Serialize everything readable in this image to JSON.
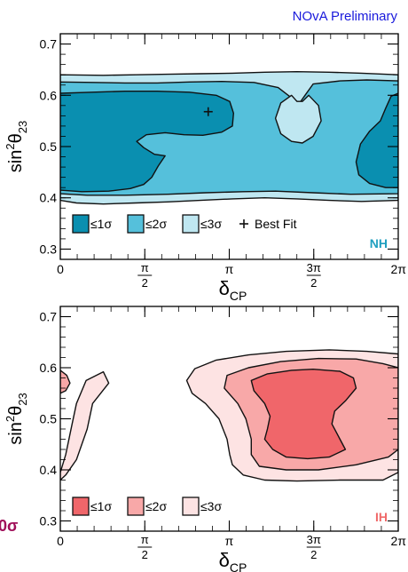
{
  "header": {
    "text": "NOvA Preliminary",
    "color": "#1a1adc"
  },
  "side_label": {
    "text": "0σ",
    "color": "#a0105a"
  },
  "chart_data": [
    {
      "type": "contour",
      "hierarchy_label": "NH",
      "hierarchy_color": "#1f9fbf",
      "x_axis": {
        "label_main": "δ",
        "label_sub": "CP",
        "range": [
          0,
          6.2832
        ],
        "ticks": [
          {
            "value": 0,
            "kind": "plain",
            "text": "0"
          },
          {
            "value": 1.5708,
            "kind": "frac",
            "num": "π",
            "den": "2"
          },
          {
            "value": 3.1416,
            "kind": "plain",
            "text": "π"
          },
          {
            "value": 4.7124,
            "kind": "frac",
            "num": "3π",
            "den": "2"
          },
          {
            "value": 6.2832,
            "kind": "plain",
            "text": "2π"
          }
        ]
      },
      "y_axis": {
        "label_main": "sin",
        "label_sup": "2",
        "label_theta": "θ",
        "label_sub": "23",
        "range": [
          0.28,
          0.72
        ],
        "ticks": [
          {
            "value": 0.3,
            "text": "0.3"
          },
          {
            "value": 0.4,
            "text": "0.4"
          },
          {
            "value": 0.5,
            "text": "0.5"
          },
          {
            "value": 0.6,
            "text": "0.6"
          },
          {
            "value": 0.7,
            "text": "0.7"
          }
        ]
      },
      "colors": {
        "1sigma": "#0a8fb0",
        "2sigma": "#55c0db",
        "3sigma": "#bfe7f1"
      },
      "legend": [
        {
          "key": "1sigma",
          "text": "≤1σ"
        },
        {
          "key": "2sigma",
          "text": "≤2σ"
        },
        {
          "key": "3sigma",
          "text": "≤3σ"
        },
        {
          "key": "best",
          "text": "Best Fit"
        }
      ],
      "best_fit": {
        "x": 2.75,
        "y": 0.568
      },
      "regions": [
        {
          "level": "3sigma",
          "points": [
            [
              0,
              0.395
            ],
            [
              0.3,
              0.39
            ],
            [
              0.8,
              0.388
            ],
            [
              1.4,
              0.39
            ],
            [
              2,
              0.392
            ],
            [
              2.6,
              0.395
            ],
            [
              3.2,
              0.398
            ],
            [
              3.8,
              0.4
            ],
            [
              4.4,
              0.398
            ],
            [
              5,
              0.395
            ],
            [
              5.6,
              0.393
            ],
            [
              6.2832,
              0.395
            ],
            [
              6.2832,
              0.64
            ],
            [
              5.6,
              0.643
            ],
            [
              5,
              0.645
            ],
            [
              4.4,
              0.646
            ],
            [
              3.8,
              0.645
            ],
            [
              3.2,
              0.643
            ],
            [
              2.6,
              0.642
            ],
            [
              2,
              0.641
            ],
            [
              1.4,
              0.64
            ],
            [
              0.8,
              0.639
            ],
            [
              0,
              0.64
            ]
          ]
        },
        {
          "level": "2sigma",
          "points": [
            [
              0,
              0.408
            ],
            [
              0.5,
              0.405
            ],
            [
              1.2,
              0.405
            ],
            [
              2,
              0.407
            ],
            [
              2.7,
              0.41
            ],
            [
              3.4,
              0.412
            ],
            [
              4,
              0.413
            ],
            [
              4.7,
              0.41
            ],
            [
              5.4,
              0.407
            ],
            [
              6.2832,
              0.408
            ],
            [
              6.2832,
              0.628
            ],
            [
              5.7,
              0.63
            ],
            [
              5.2,
              0.628
            ],
            [
              4.7,
              0.622
            ],
            [
              4.55,
              0.6
            ],
            [
              4.45,
              0.585
            ],
            [
              4.3,
              0.595
            ],
            [
              4.05,
              0.615
            ],
            [
              3.6,
              0.625
            ],
            [
              3,
              0.627
            ],
            [
              2.4,
              0.626
            ],
            [
              1.8,
              0.624
            ],
            [
              1.2,
              0.624
            ],
            [
              0.6,
              0.625
            ],
            [
              0,
              0.626
            ]
          ]
        },
        {
          "level": "3sigma",
          "points": [
            [
              4.3,
              0.6
            ],
            [
              4.1,
              0.585
            ],
            [
              4,
              0.555
            ],
            [
              4.1,
              0.525
            ],
            [
              4.3,
              0.51
            ],
            [
              4.5,
              0.507
            ],
            [
              4.7,
              0.52
            ],
            [
              4.85,
              0.55
            ],
            [
              4.8,
              0.58
            ],
            [
              4.62,
              0.6
            ],
            [
              4.5,
              0.588
            ],
            [
              4.4,
              0.588
            ]
          ]
        },
        {
          "level": "1sigma",
          "points": [
            [
              0,
              0.415
            ],
            [
              0.4,
              0.412
            ],
            [
              0.9,
              0.413
            ],
            [
              1.3,
              0.418
            ],
            [
              1.55,
              0.426
            ],
            [
              1.7,
              0.44
            ],
            [
              1.82,
              0.462
            ],
            [
              1.95,
              0.482
            ],
            [
              1.75,
              0.485
            ],
            [
              1.55,
              0.498
            ],
            [
              1.42,
              0.51
            ],
            [
              1.6,
              0.523
            ],
            [
              1.95,
              0.527
            ],
            [
              2.3,
              0.523
            ],
            [
              2.65,
              0.522
            ],
            [
              3,
              0.528
            ],
            [
              3.2,
              0.54
            ],
            [
              3.22,
              0.565
            ],
            [
              3.15,
              0.588
            ],
            [
              2.9,
              0.6
            ],
            [
              2.4,
              0.606
            ],
            [
              1.8,
              0.608
            ],
            [
              1.2,
              0.608
            ],
            [
              0.6,
              0.606
            ],
            [
              0,
              0.604
            ]
          ]
        },
        {
          "level": "1sigma",
          "points": [
            [
              6.2832,
              0.42
            ],
            [
              6.05,
              0.42
            ],
            [
              5.75,
              0.428
            ],
            [
              5.55,
              0.445
            ],
            [
              5.5,
              0.47
            ],
            [
              5.58,
              0.505
            ],
            [
              5.75,
              0.53
            ],
            [
              5.95,
              0.55
            ],
            [
              6.05,
              0.575
            ],
            [
              6.15,
              0.598
            ],
            [
              6.2832,
              0.604
            ]
          ]
        }
      ],
      "line_color": "#111111"
    },
    {
      "type": "contour",
      "hierarchy_label": "IH",
      "hierarchy_color": "#f06a6a",
      "x_axis": {
        "label_main": "δ",
        "label_sub": "CP",
        "range": [
          0,
          6.2832
        ],
        "ticks": [
          {
            "value": 0,
            "kind": "plain",
            "text": "0"
          },
          {
            "value": 1.5708,
            "kind": "frac",
            "num": "π",
            "den": "2"
          },
          {
            "value": 3.1416,
            "kind": "plain",
            "text": "π"
          },
          {
            "value": 4.7124,
            "kind": "frac",
            "num": "3π",
            "den": "2"
          },
          {
            "value": 6.2832,
            "kind": "plain",
            "text": "2π"
          }
        ]
      },
      "y_axis": {
        "label_main": "sin",
        "label_sup": "2",
        "label_theta": "θ",
        "label_sub": "23",
        "range": [
          0.28,
          0.72
        ],
        "ticks": [
          {
            "value": 0.3,
            "text": "0.3"
          },
          {
            "value": 0.4,
            "text": "0.4"
          },
          {
            "value": 0.5,
            "text": "0.5"
          },
          {
            "value": 0.6,
            "text": "0.6"
          },
          {
            "value": 0.7,
            "text": "0.7"
          }
        ]
      },
      "colors": {
        "1sigma": "#f0666a",
        "2sigma": "#f8a8a8",
        "3sigma": "#fde3e3"
      },
      "legend": [
        {
          "key": "1sigma",
          "text": "≤1σ"
        },
        {
          "key": "2sigma",
          "text": "≤2σ"
        },
        {
          "key": "3sigma",
          "text": "≤3σ"
        }
      ],
      "regions": [
        {
          "level": "3sigma",
          "points": [
            [
              0,
              0.395
            ],
            [
              0.1,
              0.43
            ],
            [
              0.22,
              0.49
            ],
            [
              0.3,
              0.53
            ],
            [
              0.48,
              0.575
            ],
            [
              0.8,
              0.592
            ],
            [
              0.9,
              0.57
            ],
            [
              0.6,
              0.53
            ],
            [
              0.5,
              0.48
            ],
            [
              0.3,
              0.42
            ],
            [
              0.1,
              0.39
            ],
            [
              0,
              0.38
            ]
          ]
        },
        {
          "level": "3sigma",
          "points": [
            [
              6.2832,
              0.395
            ],
            [
              6,
              0.38
            ],
            [
              5.2,
              0.38
            ],
            [
              4.4,
              0.378
            ],
            [
              3.8,
              0.38
            ],
            [
              3.4,
              0.39
            ],
            [
              3.2,
              0.41
            ],
            [
              3.15,
              0.43
            ],
            [
              3.1,
              0.46
            ],
            [
              2.95,
              0.5
            ],
            [
              2.7,
              0.53
            ],
            [
              2.45,
              0.55
            ],
            [
              2.35,
              0.575
            ],
            [
              2.5,
              0.598
            ],
            [
              2.9,
              0.615
            ],
            [
              3.5,
              0.625
            ],
            [
              4.2,
              0.632
            ],
            [
              5,
              0.635
            ],
            [
              5.7,
              0.632
            ],
            [
              6.2832,
              0.627
            ]
          ]
        },
        {
          "level": "2sigma",
          "points": [
            [
              0,
              0.595
            ],
            [
              0.12,
              0.585
            ],
            [
              0.18,
              0.57
            ],
            [
              0.1,
              0.555
            ],
            [
              0,
              0.55
            ]
          ]
        },
        {
          "level": "2sigma",
          "points": [
            [
              6.2832,
              0.44
            ],
            [
              6.1,
              0.425
            ],
            [
              5.5,
              0.41
            ],
            [
              4.8,
              0.4
            ],
            [
              4.2,
              0.4
            ],
            [
              3.7,
              0.407
            ],
            [
              3.55,
              0.43
            ],
            [
              3.55,
              0.46
            ],
            [
              3.45,
              0.5
            ],
            [
              3.3,
              0.53
            ],
            [
              3.05,
              0.56
            ],
            [
              3.1,
              0.585
            ],
            [
              3.5,
              0.6
            ],
            [
              4.1,
              0.612
            ],
            [
              4.8,
              0.618
            ],
            [
              5.5,
              0.617
            ],
            [
              6,
              0.608
            ],
            [
              6.2832,
              0.6
            ]
          ]
        },
        {
          "level": "1sigma",
          "points": [
            [
              3.95,
              0.44
            ],
            [
              4.2,
              0.425
            ],
            [
              4.6,
              0.422
            ],
            [
              5,
              0.425
            ],
            [
              5.3,
              0.44
            ],
            [
              5.2,
              0.46
            ],
            [
              5.05,
              0.49
            ],
            [
              5.1,
              0.515
            ],
            [
              5.3,
              0.535
            ],
            [
              5.5,
              0.56
            ],
            [
              5.45,
              0.58
            ],
            [
              5.2,
              0.593
            ],
            [
              4.7,
              0.597
            ],
            [
              4.3,
              0.595
            ],
            [
              3.85,
              0.588
            ],
            [
              3.55,
              0.575
            ],
            [
              3.6,
              0.555
            ],
            [
              3.8,
              0.53
            ],
            [
              3.9,
              0.505
            ],
            [
              3.85,
              0.48
            ],
            [
              3.8,
              0.46
            ]
          ]
        }
      ],
      "line_color": "#111111"
    }
  ]
}
